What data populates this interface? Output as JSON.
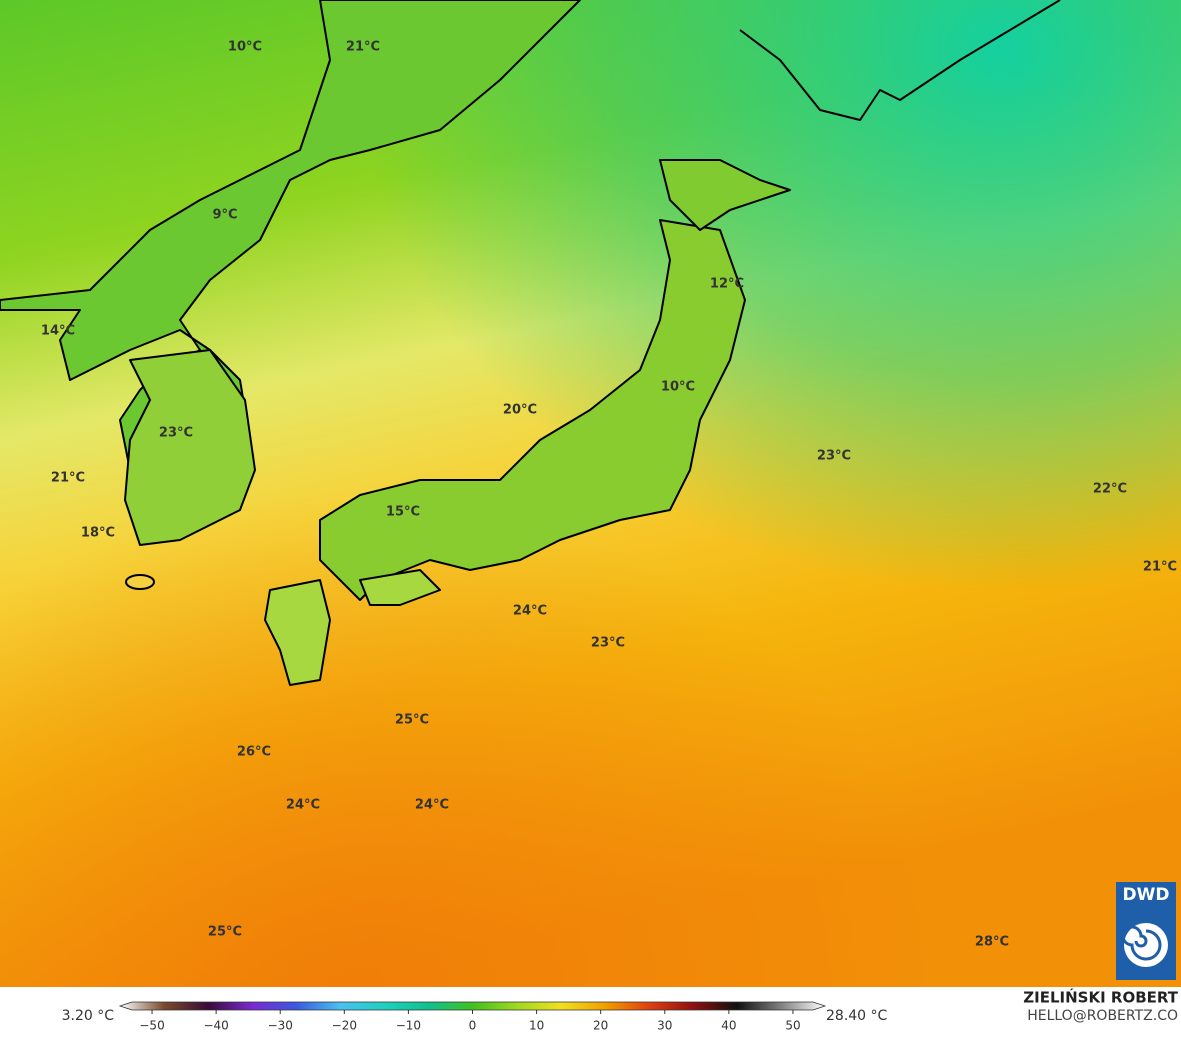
{
  "map": {
    "labels": [
      "10°C",
      "21°C",
      "9°C",
      "14°C",
      "12°C",
      "20°C",
      "10°C",
      "23°C",
      "21°C",
      "23°C",
      "22°C",
      "18°C",
      "15°C",
      "21°C",
      "24°C",
      "23°C",
      "25°C",
      "26°C",
      "24°C",
      "24°C",
      "25°C",
      "28°C"
    ],
    "logo": "DWD"
  },
  "colorbar": {
    "min_label": "3.20 °C",
    "max_label": "28.40 °C",
    "xlim": [
      -55,
      55
    ],
    "xticks": [
      {
        "value": -50,
        "label": "−50"
      },
      {
        "value": -40,
        "label": "−40"
      },
      {
        "value": -30,
        "label": "−30"
      },
      {
        "value": -20,
        "label": "−20"
      },
      {
        "value": -10,
        "label": "−10"
      },
      0,
      10,
      20,
      30,
      40,
      50
    ],
    "colors": [
      "#ffffff",
      "#7a4a2a",
      "#3a0a3a",
      "#7a2ad0",
      "#3a5ae0",
      "#4ac0f0",
      "#20d0c0",
      "#10c090",
      "#40c020",
      "#a0d820",
      "#f0e020",
      "#f0a000",
      "#e04010",
      "#901010",
      "#101010",
      "#808080",
      "#ffffff"
    ]
  },
  "credits": {
    "author": "ZIELIŃSKI ROBERT",
    "contact": "HELLO@ROBERTZ.CO"
  }
}
